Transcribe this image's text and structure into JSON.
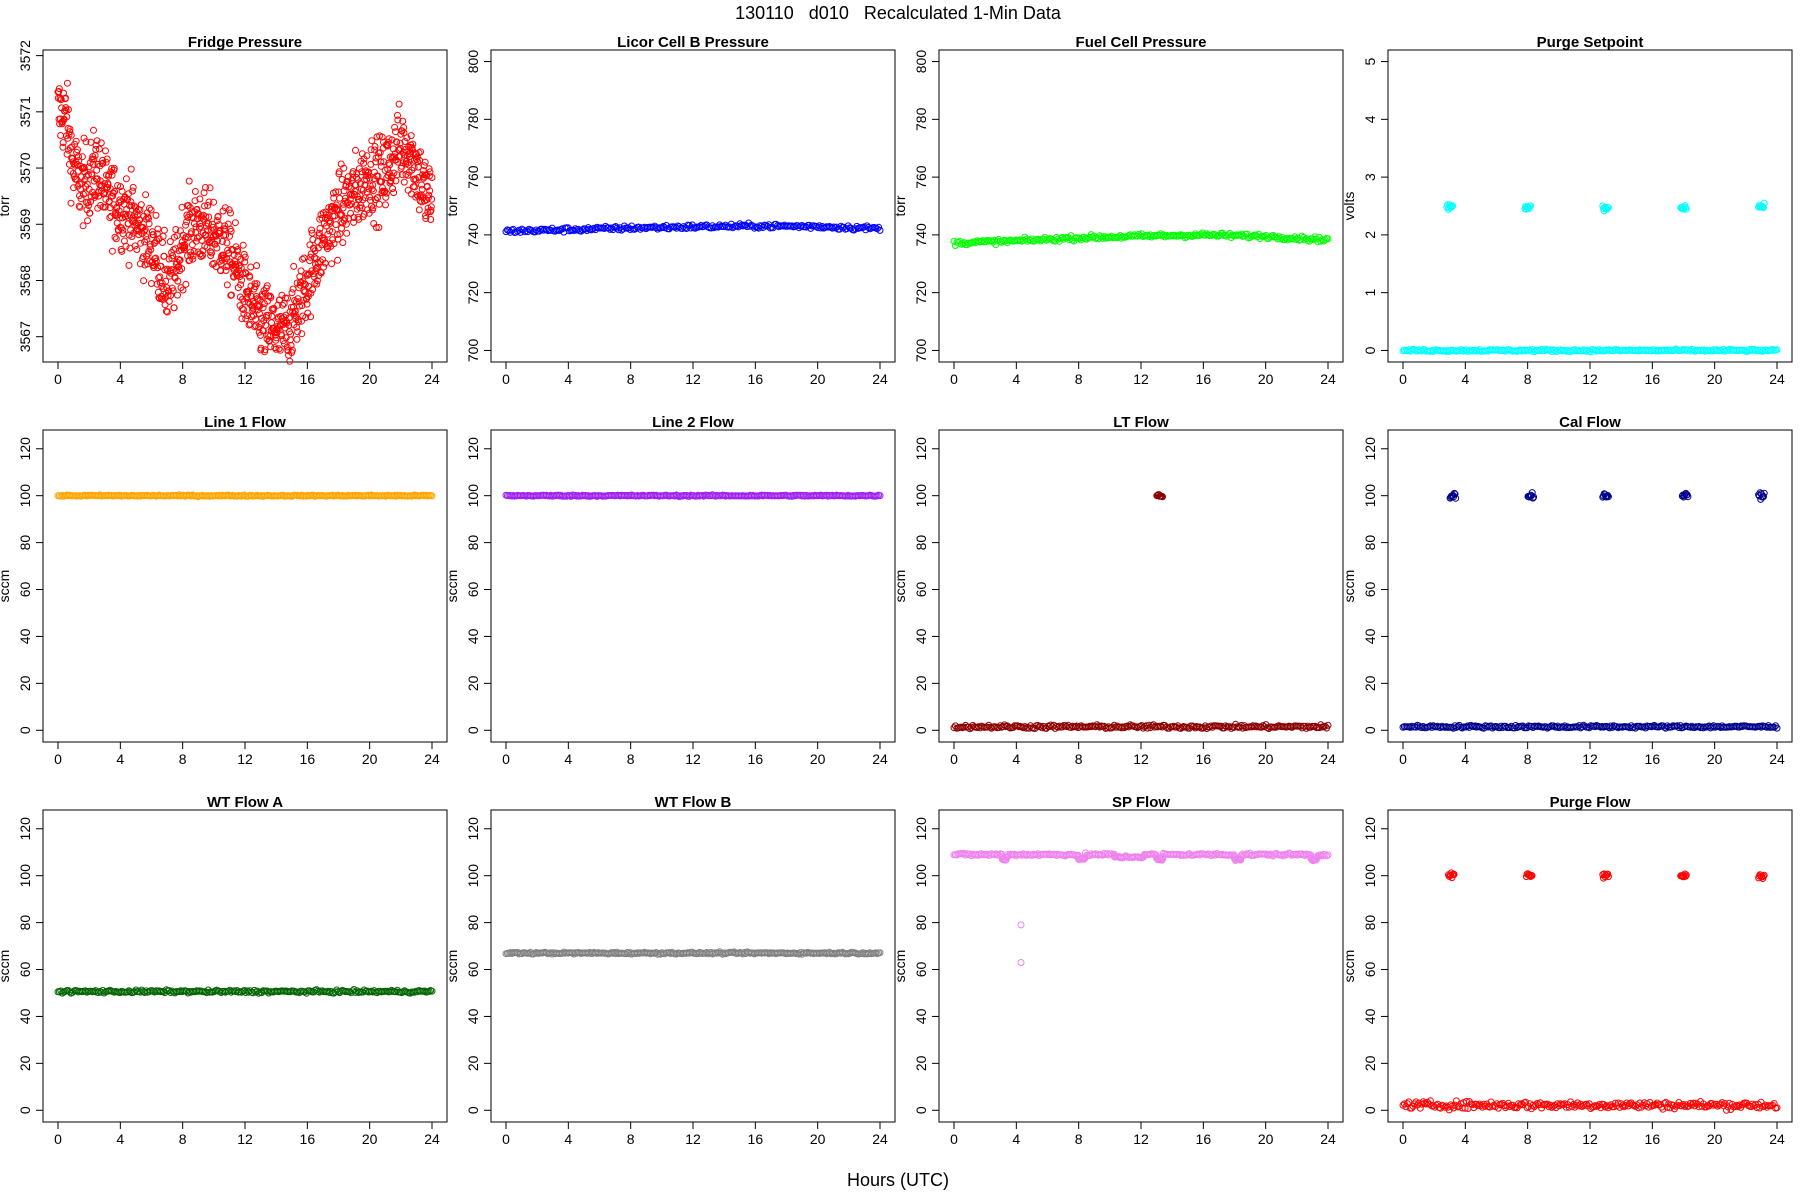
{
  "figure": {
    "title": "130110   d010   Recalculated 1-Min Data",
    "xlabel": "Hours (UTC)"
  },
  "chart_data": [
    {
      "type": "scatter",
      "title": "Fridge Pressure",
      "ylabel": "torr",
      "color": "#ff0000",
      "xlim": [
        0,
        24
      ],
      "ylim": [
        3566.55,
        3572.1
      ],
      "xticks": [
        0,
        4,
        8,
        12,
        16,
        20,
        24
      ],
      "yticks": [
        3567,
        3568,
        3569,
        3570,
        3571,
        3572
      ],
      "pattern": "noisy",
      "x": [
        0,
        0.5,
        1,
        1.5,
        2,
        2.5,
        3,
        3.5,
        4,
        4.5,
        5,
        5.5,
        6,
        6.5,
        7,
        7.5,
        8,
        8.5,
        9,
        9.5,
        10,
        10.5,
        11,
        11.5,
        12,
        12.5,
        13,
        13.5,
        14,
        14.5,
        15,
        15.5,
        16,
        16.5,
        17,
        17.5,
        18,
        18.5,
        19,
        19.5,
        20,
        20.5,
        21,
        21.5,
        22,
        22.5,
        23,
        23.5,
        24
      ],
      "y": [
        3571.0,
        3570.9,
        3570.0,
        3569.7,
        3569.8,
        3570.0,
        3569.6,
        3569.4,
        3569.3,
        3569.2,
        3569.0,
        3568.8,
        3568.7,
        3568.3,
        3567.9,
        3568.1,
        3568.7,
        3568.9,
        3569.0,
        3568.9,
        3568.8,
        3568.7,
        3568.5,
        3568.2,
        3567.8,
        3567.5,
        3567.3,
        3567.2,
        3567.1,
        3567.1,
        3567.3,
        3567.6,
        3568.0,
        3568.4,
        3568.7,
        3569.0,
        3569.2,
        3569.4,
        3569.5,
        3569.7,
        3569.9,
        3569.8,
        3569.9,
        3570.2,
        3570.4,
        3570.3,
        3570.0,
        3569.6,
        3569.4
      ],
      "noise": 0.35
    },
    {
      "type": "scatter",
      "title": "Licor Cell B Pressure",
      "ylabel": "torr",
      "color": "#0000ff",
      "xlim": [
        0,
        24
      ],
      "ylim": [
        696,
        804
      ],
      "xticks": [
        0,
        4,
        8,
        12,
        16,
        20,
        24
      ],
      "yticks": [
        700,
        720,
        740,
        760,
        780,
        800
      ],
      "pattern": "dense",
      "x": [
        0,
        4,
        8,
        12,
        16,
        20,
        24
      ],
      "y": [
        741.3,
        741.8,
        742.4,
        742.8,
        743.1,
        742.9,
        742.2
      ],
      "noise": 0.4
    },
    {
      "type": "scatter",
      "title": "Fuel Cell Pressure",
      "ylabel": "torr",
      "color": "#00ff00",
      "xlim": [
        0,
        24
      ],
      "ylim": [
        696,
        804
      ],
      "xticks": [
        0,
        4,
        8,
        12,
        16,
        20,
        24
      ],
      "yticks": [
        700,
        720,
        740,
        760,
        780,
        800
      ],
      "pattern": "dense",
      "x": [
        0,
        4,
        8,
        12,
        16,
        20,
        24
      ],
      "y": [
        737.2,
        737.9,
        739.0,
        739.6,
        740.0,
        739.5,
        738.3
      ],
      "noise": 0.4
    },
    {
      "type": "scatter",
      "title": "Purge Setpoint",
      "ylabel": "volts",
      "color": "#00ffff",
      "xlim": [
        0,
        24
      ],
      "ylim": [
        -0.2,
        5.2
      ],
      "xticks": [
        0,
        4,
        8,
        12,
        16,
        20,
        24
      ],
      "yticks": [
        0,
        1,
        2,
        3,
        4,
        5
      ],
      "pattern": "baseline_spikes",
      "x": [
        0,
        24
      ],
      "y": [
        0,
        0
      ],
      "noise": 0.01,
      "spikes": [
        {
          "x": 3.0,
          "y": 2.48
        },
        {
          "x": 8.0,
          "y": 2.48
        },
        {
          "x": 13.0,
          "y": 2.47
        },
        {
          "x": 18.0,
          "y": 2.48
        },
        {
          "x": 23.0,
          "y": 2.49
        }
      ]
    },
    {
      "type": "scatter",
      "title": "Line 1 Flow",
      "ylabel": "sccm",
      "color": "#ffa500",
      "xlim": [
        0,
        24
      ],
      "ylim": [
        -5,
        128
      ],
      "xticks": [
        0,
        4,
        8,
        12,
        16,
        20,
        24
      ],
      "yticks": [
        0,
        20,
        40,
        60,
        80,
        100,
        120
      ],
      "pattern": "dense",
      "x": [
        0,
        24
      ],
      "y": [
        100,
        100
      ],
      "noise": 0.15
    },
    {
      "type": "scatter",
      "title": "Line 2 Flow",
      "ylabel": "sccm",
      "color": "#a020f0",
      "xlim": [
        0,
        24
      ],
      "ylim": [
        -5,
        128
      ],
      "xticks": [
        0,
        4,
        8,
        12,
        16,
        20,
        24
      ],
      "yticks": [
        0,
        20,
        40,
        60,
        80,
        100,
        120
      ],
      "pattern": "dense",
      "x": [
        0,
        24
      ],
      "y": [
        100,
        100
      ],
      "noise": 0.15
    },
    {
      "type": "scatter",
      "title": "LT Flow",
      "ylabel": "sccm",
      "color": "#8b0000",
      "xlim": [
        0,
        24
      ],
      "ylim": [
        -5,
        128
      ],
      "xticks": [
        0,
        4,
        8,
        12,
        16,
        20,
        24
      ],
      "yticks": [
        0,
        20,
        40,
        60,
        80,
        100,
        120
      ],
      "pattern": "baseline_spikes",
      "x": [
        0,
        24
      ],
      "y": [
        1.5,
        1.5
      ],
      "noise": 0.4,
      "spikes": [
        {
          "x": 13.2,
          "y": 100
        }
      ]
    },
    {
      "type": "scatter",
      "title": "Cal Flow",
      "ylabel": "sccm",
      "color": "#00008b",
      "xlim": [
        0,
        24
      ],
      "ylim": [
        -5,
        128
      ],
      "xticks": [
        0,
        4,
        8,
        12,
        16,
        20,
        24
      ],
      "yticks": [
        0,
        20,
        40,
        60,
        80,
        100,
        120
      ],
      "pattern": "baseline_spikes",
      "x": [
        0,
        24
      ],
      "y": [
        1.5,
        1.5
      ],
      "noise": 0.3,
      "spikes": [
        {
          "x": 3.2,
          "y": 100
        },
        {
          "x": 8.2,
          "y": 100
        },
        {
          "x": 13.0,
          "y": 100
        },
        {
          "x": 18.1,
          "y": 100
        },
        {
          "x": 23.0,
          "y": 100
        }
      ]
    },
    {
      "type": "scatter",
      "title": "WT Flow A",
      "ylabel": "sccm",
      "color": "#006400",
      "xlim": [
        0,
        24
      ],
      "ylim": [
        -5,
        128
      ],
      "xticks": [
        0,
        4,
        8,
        12,
        16,
        20,
        24
      ],
      "yticks": [
        0,
        20,
        40,
        60,
        80,
        100,
        120
      ],
      "pattern": "dense",
      "x": [
        0,
        24
      ],
      "y": [
        50.6,
        50.6
      ],
      "noise": 0.3
    },
    {
      "type": "scatter",
      "title": "WT Flow B",
      "ylabel": "sccm",
      "color": "#808080",
      "xlim": [
        0,
        24
      ],
      "ylim": [
        -5,
        128
      ],
      "xticks": [
        0,
        4,
        8,
        12,
        16,
        20,
        24
      ],
      "yticks": [
        0,
        20,
        40,
        60,
        80,
        100,
        120
      ],
      "pattern": "dense",
      "x": [
        0,
        24
      ],
      "y": [
        67,
        67
      ],
      "noise": 0.2
    },
    {
      "type": "scatter",
      "title": "SP Flow",
      "ylabel": "sccm",
      "color": "#ee82ee",
      "xlim": [
        0,
        24
      ],
      "ylim": [
        -5,
        128
      ],
      "xticks": [
        0,
        4,
        8,
        12,
        16,
        20,
        24
      ],
      "yticks": [
        0,
        20,
        40,
        60,
        80,
        100,
        120
      ],
      "pattern": "dense",
      "x": [
        0,
        24
      ],
      "y": [
        109,
        109
      ],
      "noise": 0.3,
      "dips": [
        {
          "x0": 3.1,
          "x1": 3.4,
          "y": 107
        },
        {
          "x0": 8.0,
          "x1": 8.4,
          "y": 107
        },
        {
          "x0": 10.3,
          "x1": 12.2,
          "y": 108
        },
        {
          "x0": 13.0,
          "x1": 13.4,
          "y": 107
        },
        {
          "x0": 18.0,
          "x1": 18.4,
          "y": 107
        },
        {
          "x0": 22.9,
          "x1": 23.3,
          "y": 107
        }
      ],
      "outliers": [
        {
          "x": 4.3,
          "y": 79
        },
        {
          "x": 4.3,
          "y": 63
        }
      ]
    },
    {
      "type": "scatter",
      "title": "Purge Flow",
      "ylabel": "sccm",
      "color": "#ff0000",
      "xlim": [
        0,
        24
      ],
      "ylim": [
        -5,
        128
      ],
      "xticks": [
        0,
        4,
        8,
        12,
        16,
        20,
        24
      ],
      "yticks": [
        0,
        20,
        40,
        60,
        80,
        100,
        120
      ],
      "pattern": "baseline_spikes",
      "x": [
        0,
        24
      ],
      "y": [
        2.2,
        2.2
      ],
      "noise": 0.8,
      "spikes": [
        {
          "x": 3.1,
          "y": 100
        },
        {
          "x": 8.1,
          "y": 100
        },
        {
          "x": 13.0,
          "y": 100
        },
        {
          "x": 18.0,
          "y": 100
        },
        {
          "x": 23.0,
          "y": 100
        }
      ]
    }
  ]
}
